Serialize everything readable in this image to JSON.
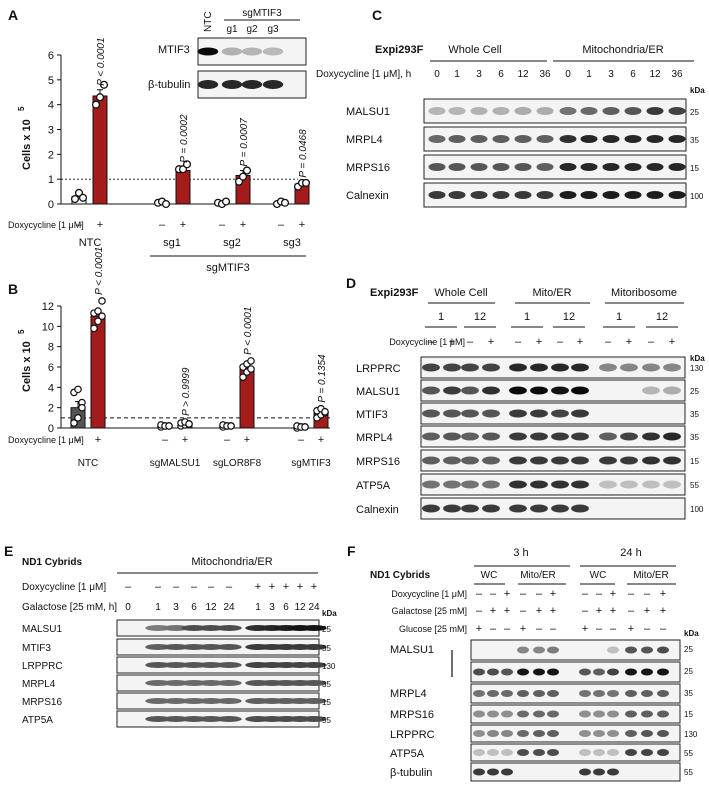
{
  "panels": {
    "A": {
      "letter": "A",
      "ylabel": "Cells x 10",
      "ylabel_sup": "5",
      "yticks": [
        "0",
        "1",
        "2",
        "3",
        "4",
        "5",
        "6"
      ],
      "treatment_label": "Doxycycline [1 μM]",
      "minus": "–",
      "plus": "+",
      "groups": [
        "NTC",
        "sg1",
        "sg2",
        "sg3"
      ],
      "group_bracket": "sgMTIF3",
      "pvalues": [
        "P < 0.0001",
        "P = 0.0002",
        "P = 0.0007",
        "P = 0.0468"
      ],
      "inset": {
        "lanes": [
          "NTC",
          "g1",
          "g2",
          "g3"
        ],
        "lane_group": "sgMTIF3",
        "rows": [
          "MTIF3",
          "β-tubulin"
        ]
      }
    },
    "B": {
      "letter": "B",
      "ylabel": "Cells x 10",
      "ylabel_sup": "5",
      "yticks": [
        "0",
        "2",
        "4",
        "6",
        "8",
        "10",
        "12"
      ],
      "treatment_label": "Doxycycline [1 μM]",
      "minus": "–",
      "plus": "+",
      "groups": [
        "NTC",
        "sgMALSU1",
        "sgLOR8F8",
        "sgMTIF3"
      ],
      "pvalues": [
        "P < 0.0001",
        "P > 0.9999",
        "P < 0.0001",
        "P = 0.1354"
      ]
    },
    "C": {
      "letter": "C",
      "cell_line": "Expi293F",
      "sections": [
        "Whole Cell",
        "Mitochondria/ER"
      ],
      "time_label": "Doxycycline [1 μM], h",
      "timepoints": [
        "0",
        "1",
        "3",
        "6",
        "12",
        "36",
        "0",
        "1",
        "3",
        "6",
        "12",
        "36"
      ],
      "kda_label": "kDa",
      "rows": [
        "MALSU1",
        "MRPL4",
        "MRPS16",
        "Calnexin"
      ],
      "markers": [
        "25",
        "35",
        "15",
        "100"
      ]
    },
    "D": {
      "letter": "D",
      "cell_line": "Expi293F",
      "sections": [
        "Whole Cell",
        "Mito/ER",
        "Mitoribosome"
      ],
      "times": [
        "1",
        "12",
        "1",
        "12",
        "1",
        "12"
      ],
      "treatment_label": "Doxycycline [1 μM]",
      "signs": [
        "–",
        "+",
        "–",
        "+",
        "–",
        "+",
        "–",
        "+",
        "–",
        "+",
        "–",
        "+"
      ],
      "kda_label": "kDa",
      "rows": [
        "LRPPRC",
        "MALSU1",
        "MTIF3",
        "MRPL4",
        "MRPS16",
        "ATP5A",
        "Calnexin"
      ],
      "markers": [
        "130",
        "25",
        "35",
        "35",
        "15",
        "55",
        "100"
      ]
    },
    "E": {
      "letter": "E",
      "cell_line": "ND1 Cybrids",
      "section": "Mitochondria/ER",
      "dox_label": "Doxycycline [1 μM]",
      "gal_label": "Galactose [25 mM, h]",
      "dox_signs": [
        "–",
        "–",
        "–",
        "–",
        "–",
        "–",
        "–",
        "+",
        "+",
        "+",
        "+",
        "+",
        "+"
      ],
      "gal_values": [
        "0",
        "1",
        "3",
        "6",
        "12",
        "24",
        "1",
        "3",
        "6",
        "12",
        "24"
      ],
      "kda_label": "kDa",
      "rows": [
        "MALSU1",
        "MTIF3",
        "LRPPRC",
        "MRPL4",
        "MRPS16",
        "ATP5A"
      ],
      "markers": [
        "25",
        "35",
        "130",
        "35",
        "15",
        "55"
      ]
    },
    "F": {
      "letter": "F",
      "cell_line": "ND1 Cybrids",
      "timepoints": [
        "3 h",
        "24 h"
      ],
      "fractions": [
        "WC",
        "Mito/ER",
        "WC",
        "Mito/ER"
      ],
      "dox_label": "Doxycycline [1 μM]",
      "gal_label": "Galactose [25 mM]",
      "glc_label": "Glucose [25 mM]",
      "dox_signs": [
        "–",
        "–",
        "+",
        "–",
        "–",
        "+",
        "–",
        "–",
        "+",
        "–",
        "–",
        "+"
      ],
      "gal_signs": [
        "–",
        "+",
        "+",
        "–",
        "+",
        "+",
        "–",
        "+",
        "+",
        "–",
        "+",
        "+"
      ],
      "glc_signs": [
        "+",
        "–",
        "–",
        "+",
        "–",
        "–",
        "+",
        "–",
        "–",
        "+",
        "–",
        "–"
      ],
      "kda_label": "kDa",
      "rows": [
        "MALSU1",
        "",
        "MRPL4",
        "MRPS16",
        "LRPPRC",
        "ATP5A",
        "β-tubulin"
      ],
      "markers": [
        "25",
        "25",
        "35",
        "15",
        "130",
        "55",
        "55"
      ]
    }
  },
  "chart_data": [
    {
      "type": "bar",
      "panel": "A",
      "categories": [
        "NTC –",
        "NTC +",
        "sg1 –",
        "sg1 +",
        "sg2 –",
        "sg2 +",
        "sg3 –",
        "sg3 +"
      ],
      "values": [
        0.3,
        4.35,
        0.05,
        1.35,
        0.05,
        1.15,
        0.05,
        0.8
      ],
      "errors": [
        0.12,
        0.25,
        0.03,
        0.15,
        0.03,
        0.2,
        0.03,
        0.1
      ],
      "points": [
        [
          0.2,
          0.45,
          0.25
        ],
        [
          4.0,
          4.3,
          4.8
        ],
        [
          0.05,
          0.1,
          0.0
        ],
        [
          1.4,
          1.4,
          1.6
        ],
        [
          0.05,
          0.0,
          0.1
        ],
        [
          0.9,
          1.1,
          1.35
        ],
        [
          0.0,
          0.1,
          0.05
        ],
        [
          0.7,
          0.85,
          0.85
        ]
      ],
      "colors": [
        "#ffffff",
        "#a31b1b"
      ],
      "ylim": [
        0,
        6
      ],
      "reference_line": 1
    },
    {
      "type": "bar",
      "panel": "B",
      "categories": [
        "NTC –",
        "NTC +",
        "sgMALSU1 –",
        "sgMALSU1 +",
        "sgLOR8F8 –",
        "sgLOR8F8 +",
        "sgMTIF3 –",
        "sgMTIF3 +"
      ],
      "values": [
        2.0,
        11.0,
        0.2,
        0.4,
        0.2,
        5.8,
        0.1,
        1.5
      ],
      "errors": [
        0.6,
        0.6,
        0.1,
        0.2,
        0.1,
        0.5,
        0.05,
        0.3
      ],
      "points": [
        [
          0.5,
          1.0,
          2.5,
          3.5,
          3.8,
          2.0
        ],
        [
          9.8,
          10.5,
          11.0,
          11.3,
          11.5,
          12.5
        ],
        [
          0.1,
          0.2,
          0.2,
          0.3,
          0.2,
          0.2
        ],
        [
          0.2,
          0.3,
          0.4,
          0.5,
          0.6,
          0.4
        ],
        [
          0.1,
          0.2,
          0.2,
          0.3,
          0.2,
          0.2
        ],
        [
          5.0,
          5.5,
          5.8,
          6.0,
          6.3,
          6.6
        ],
        [
          0.0,
          0.1,
          0.1,
          0.2,
          0.1,
          0.1
        ],
        [
          1.0,
          1.3,
          1.5,
          1.7,
          1.9,
          1.6
        ]
      ],
      "colors": [
        "#555555",
        "#a31b1b"
      ],
      "ylim": [
        0,
        12
      ],
      "reference_line": 1
    }
  ]
}
